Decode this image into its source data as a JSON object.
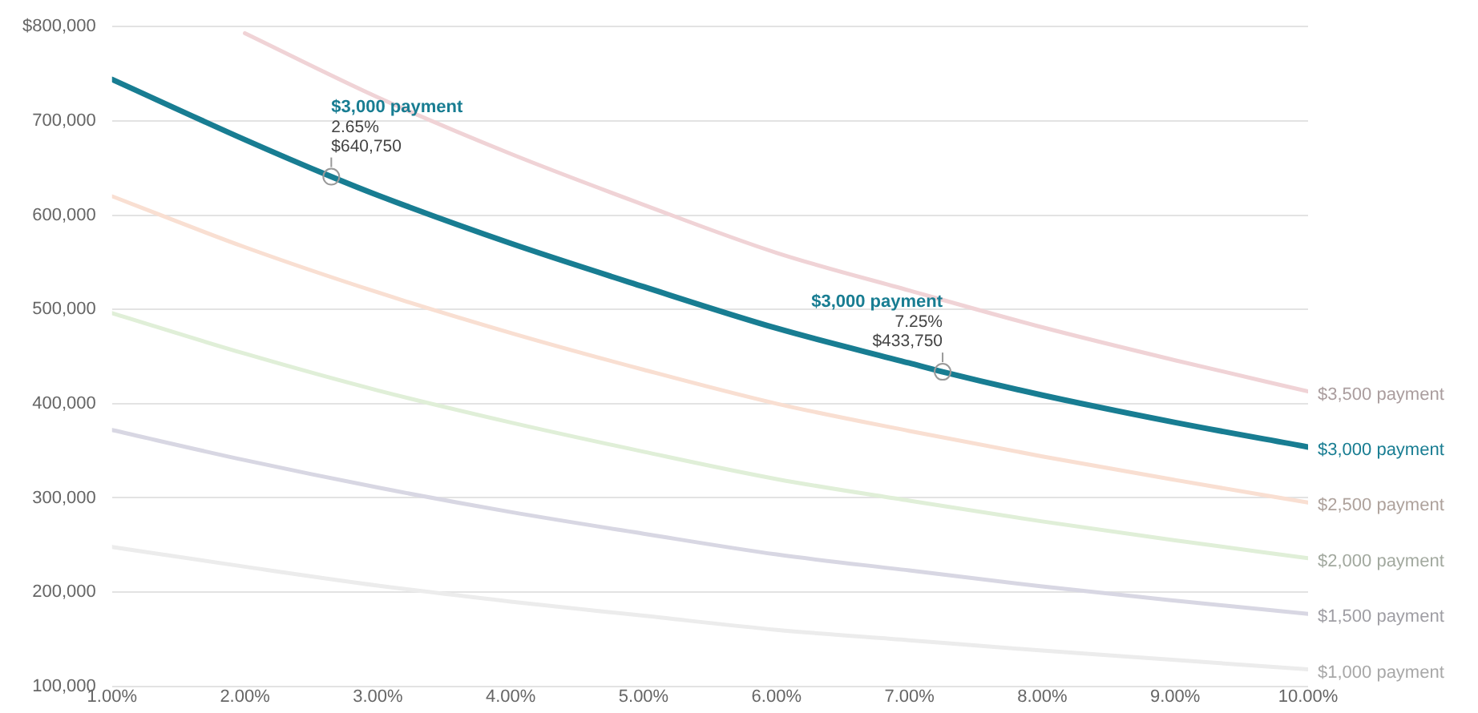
{
  "chart_data": {
    "type": "line",
    "grid": "y",
    "legend": false,
    "marker": "none",
    "line_style": "solid",
    "xlim": [
      1,
      10
    ],
    "xticks": [
      {
        "value": 1,
        "label": "1.00%"
      },
      {
        "value": 2,
        "label": "2.00%"
      },
      {
        "value": 3,
        "label": "3.00%"
      },
      {
        "value": 4,
        "label": "4.00%"
      },
      {
        "value": 5,
        "label": "5.00%"
      },
      {
        "value": 6,
        "label": "6.00%"
      },
      {
        "value": 7,
        "label": "7.00%"
      },
      {
        "value": 8,
        "label": "8.00%"
      },
      {
        "value": 9,
        "label": "9.00%"
      },
      {
        "value": 10,
        "label": "10.00%"
      }
    ],
    "ylim": [
      100000,
      800000
    ],
    "yticks": [
      {
        "value": 100000,
        "label": "100,000"
      },
      {
        "value": 200000,
        "label": "200,000"
      },
      {
        "value": 300000,
        "label": "300,000"
      },
      {
        "value": 400000,
        "label": "400,000"
      },
      {
        "value": 500000,
        "label": "500,000"
      },
      {
        "value": 600000,
        "label": "600,000"
      },
      {
        "value": 700000,
        "label": "700,000"
      },
      {
        "value": 800000,
        "label": "$800,000"
      }
    ],
    "series": [
      {
        "name": "$3,500 payment",
        "color": "#f0d3d6",
        "x": [
          2,
          3,
          4,
          5,
          6,
          7,
          8,
          9,
          10
        ],
        "values": [
          793000,
          725000,
          665000,
          611000,
          560000,
          520000,
          481000,
          446000,
          413000
        ]
      },
      {
        "name": "$2,500 payment",
        "color": "#f9dfd2",
        "x": [
          1,
          2,
          3,
          4,
          5,
          6,
          7,
          8,
          9,
          10
        ],
        "values": [
          620000,
          566000,
          518000,
          475000,
          436000,
          400000,
          371000,
          344000,
          319000,
          295000
        ]
      },
      {
        "name": "$2,000 payment",
        "color": "#e0efd8",
        "x": [
          1,
          2,
          3,
          4,
          5,
          6,
          7,
          8,
          9,
          10
        ],
        "values": [
          496000,
          453000,
          414000,
          380000,
          349000,
          320000,
          297000,
          275000,
          255000,
          236000
        ]
      },
      {
        "name": "$1,500 payment",
        "color": "#d8d7e3",
        "x": [
          1,
          2,
          3,
          4,
          5,
          6,
          7,
          8,
          9,
          10
        ],
        "values": [
          372000,
          340000,
          311000,
          285000,
          262000,
          240000,
          223000,
          206000,
          191000,
          177000
        ]
      },
      {
        "name": "$1,000 payment",
        "color": "#ececec",
        "x": [
          1,
          2,
          3,
          4,
          5,
          6,
          7,
          8,
          9,
          10
        ],
        "values": [
          248000,
          227000,
          207000,
          190000,
          175000,
          160000,
          149000,
          138000,
          128000,
          118000
        ]
      },
      {
        "name": "$3,000 payment",
        "color": "#187d92",
        "x": [
          1,
          2,
          2.65,
          3,
          4,
          5,
          6,
          7,
          7.25,
          8,
          9,
          10
        ],
        "values": [
          744000,
          680000,
          640750,
          621000,
          570000,
          524000,
          480000,
          443000,
          433750,
          409000,
          380000,
          354000
        ]
      }
    ],
    "annotations": [
      {
        "text": "$3,000 payment\n2.65%\n$640,750",
        "x": 2.65,
        "y": 640750
      },
      {
        "text": "$3,000 payment\n7.25%\n$433,750",
        "x": 7.25,
        "y": 433750
      }
    ]
  }
}
